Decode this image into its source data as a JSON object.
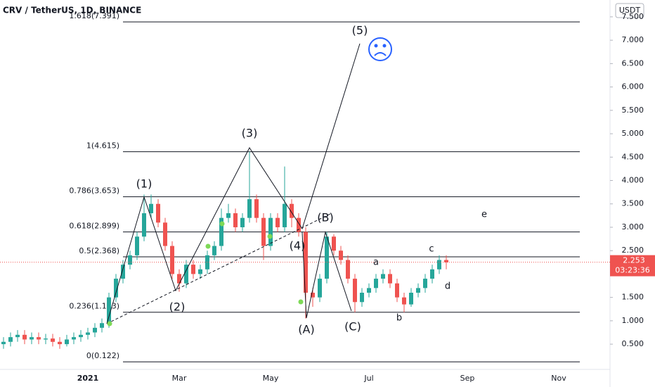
{
  "chart_data": {
    "type": "candlestick",
    "title": "CRV / TetherUS, 1D, BINANCE",
    "currency": "USDT",
    "categories": [
      null,
      null,
      null,
      null,
      null,
      null,
      null,
      null,
      null,
      null,
      null,
      null,
      "2021",
      null,
      null,
      null,
      null,
      null,
      null,
      null,
      null,
      null,
      null,
      null,
      null,
      "Mar",
      null,
      null,
      null,
      null,
      null,
      null,
      null,
      null,
      null,
      null,
      null,
      null,
      "May",
      null,
      null,
      null,
      null,
      null,
      null,
      null,
      null,
      null,
      null,
      null,
      null,
      null,
      "Jul",
      null,
      null,
      null,
      null,
      null,
      null,
      null,
      null,
      null,
      null,
      null,
      null,
      null,
      "Sep",
      null,
      null,
      null,
      null,
      null,
      null,
      null,
      null,
      null,
      null,
      null,
      null,
      "Nov",
      null,
      null,
      null,
      null,
      null,
      null,
      null
    ],
    "open": [
      0.5,
      0.55,
      0.65,
      0.7,
      0.6,
      0.65,
      0.6,
      0.62,
      0.55,
      0.5,
      0.6,
      0.65,
      0.7,
      0.75,
      0.85,
      0.95,
      1.5,
      1.9,
      2.2,
      2.4,
      2.8,
      3.3,
      3.5,
      3.1,
      2.6,
      2.0,
      1.8,
      2.2,
      2.0,
      2.1,
      2.4,
      2.6,
      3.2,
      3.3,
      3.0,
      3.2,
      3.6,
      3.2,
      2.6,
      3.2,
      3.0,
      3.5,
      3.2,
      2.9,
      1.6,
      1.5,
      1.9,
      2.8,
      2.5,
      2.3,
      1.9,
      1.4,
      1.6,
      1.7,
      1.9,
      2.0,
      1.8,
      1.5,
      1.35,
      1.6,
      1.7,
      1.9,
      2.1,
      2.3,
      null,
      null,
      null,
      null,
      null,
      null,
      null,
      null,
      null,
      null,
      null,
      null,
      null,
      null,
      null,
      null,
      null,
      null,
      null,
      null,
      null,
      null,
      null
    ],
    "high": [
      0.65,
      0.75,
      0.8,
      0.8,
      0.75,
      0.75,
      0.72,
      0.72,
      0.65,
      0.7,
      0.75,
      0.8,
      0.85,
      0.95,
      1.05,
      1.6,
      2.0,
      2.3,
      2.5,
      2.9,
      3.7,
      3.7,
      3.6,
      3.2,
      2.7,
      2.1,
      2.3,
      2.3,
      2.2,
      2.5,
      2.7,
      3.4,
      3.5,
      3.4,
      3.3,
      4.615,
      3.7,
      3.3,
      3.3,
      3.3,
      4.3,
      3.6,
      3.3,
      3.0,
      1.7,
      2.0,
      2.9,
      2.85,
      2.6,
      2.4,
      2.0,
      1.7,
      1.8,
      2.0,
      2.1,
      2.1,
      1.9,
      1.6,
      1.7,
      1.8,
      2.0,
      2.2,
      2.4,
      2.4,
      null,
      null,
      null,
      null,
      null,
      null,
      null,
      null,
      null,
      null,
      null,
      null,
      null,
      null,
      null,
      null,
      null,
      null,
      null,
      null,
      null,
      null,
      null
    ],
    "low": [
      0.4,
      0.45,
      0.55,
      0.5,
      0.5,
      0.5,
      0.5,
      0.45,
      0.4,
      0.45,
      0.5,
      0.55,
      0.6,
      0.65,
      0.75,
      0.85,
      1.4,
      1.8,
      2.1,
      2.3,
      2.7,
      3.2,
      3.0,
      2.5,
      1.9,
      1.62,
      1.7,
      1.9,
      1.9,
      2.0,
      2.3,
      2.5,
      3.1,
      2.9,
      2.9,
      3.1,
      3.1,
      2.3,
      2.5,
      2.9,
      2.9,
      3.0,
      2.8,
      1.05,
      1.3,
      1.4,
      1.8,
      2.4,
      2.2,
      1.8,
      1.18,
      1.3,
      1.5,
      1.6,
      1.8,
      1.7,
      1.4,
      1.18,
      1.3,
      1.5,
      1.6,
      1.8,
      2.0,
      2.1,
      null,
      null,
      null,
      null,
      null,
      null,
      null,
      null,
      null,
      null,
      null,
      null,
      null,
      null,
      null,
      null,
      null,
      null,
      null,
      null,
      null,
      null,
      null
    ],
    "close": [
      0.55,
      0.65,
      0.7,
      0.6,
      0.65,
      0.6,
      0.62,
      0.55,
      0.5,
      0.6,
      0.65,
      0.7,
      0.75,
      0.85,
      0.95,
      1.5,
      1.9,
      2.2,
      2.4,
      2.8,
      3.3,
      3.5,
      3.1,
      2.6,
      2.0,
      1.8,
      2.2,
      2.0,
      2.1,
      2.4,
      2.6,
      3.2,
      3.3,
      3.0,
      3.2,
      3.6,
      3.2,
      2.6,
      3.2,
      3.0,
      3.5,
      3.2,
      2.9,
      1.6,
      1.5,
      1.9,
      2.8,
      2.5,
      2.3,
      1.9,
      1.4,
      1.6,
      1.7,
      1.9,
      2.0,
      1.8,
      1.5,
      1.35,
      1.6,
      1.7,
      1.9,
      2.1,
      2.3,
      2.25,
      null,
      null,
      null,
      null,
      null,
      null,
      null,
      null,
      null,
      null,
      null,
      null,
      null,
      null,
      null,
      null,
      null,
      null,
      null,
      null,
      null,
      null,
      null
    ],
    "up_color": "#26a69a",
    "down_color": "#ef5350",
    "ylim": [
      -0.04,
      7.86
    ],
    "yticks": [
      {
        "value": 0.5,
        "label": "0.500"
      },
      {
        "value": 1,
        "label": "1.000"
      },
      {
        "value": 1.5,
        "label": "1.500"
      },
      {
        "value": 2,
        "label": "2.000"
      },
      {
        "value": 2.5,
        "label": "2.500"
      },
      {
        "value": 3,
        "label": "3.000"
      },
      {
        "value": 3.5,
        "label": "3.500"
      },
      {
        "value": 4,
        "label": "4.000"
      },
      {
        "value": 4.5,
        "label": "4.500"
      },
      {
        "value": 5,
        "label": "5.000"
      },
      {
        "value": 5.5,
        "label": "5.500"
      },
      {
        "value": 6,
        "label": "6.000"
      },
      {
        "value": 6.5,
        "label": "6.500"
      },
      {
        "value": 7,
        "label": "7.000"
      },
      {
        "value": 7.5,
        "label": "7.500"
      }
    ],
    "fib_levels": [
      {
        "value": 7.391,
        "label": "1.618(7.391)"
      },
      {
        "value": 4.615,
        "label": "1(4.615)"
      },
      {
        "value": 3.653,
        "label": "0.786(3.653)"
      },
      {
        "value": 2.899,
        "label": "0.618(2.899)"
      },
      {
        "value": 2.368,
        "label": "0.5(2.368)"
      },
      {
        "value": 1.183,
        "label": "0.236(1.183)"
      },
      {
        "value": 0.122,
        "label": "0(0.122)"
      }
    ],
    "annotations": [
      "(1)",
      "(2)",
      "(3)",
      "(4)",
      "(5)",
      "(A)",
      "(B)",
      "(C)",
      "a",
      "b",
      "c",
      "d",
      "e"
    ],
    "last_price": 2.253,
    "last_price_color": "#ef5350",
    "countdown": "03:23:36"
  }
}
